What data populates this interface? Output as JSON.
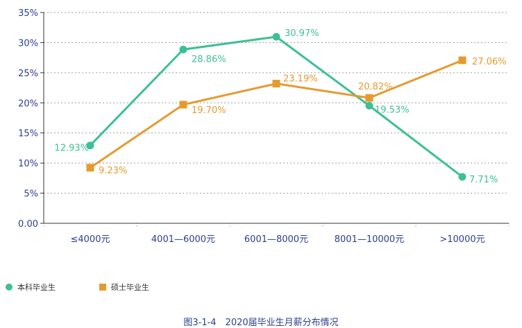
{
  "chart_data": {
    "type": "line",
    "categories": [
      "≤4000元",
      "4001—6000元",
      "6001—8000元",
      "8001—10000元",
      ">10000元"
    ],
    "y_ticks": [
      "0.00",
      "5%",
      "10%",
      "15%",
      "20%",
      "25%",
      "30%",
      "35%"
    ],
    "ylim": [
      0,
      35
    ],
    "grid": true,
    "legend_position": "bottom-left",
    "series": [
      {
        "name": "本科毕业生",
        "marker": "circle",
        "color": "#3dbf96",
        "values": [
          12.93,
          28.86,
          30.97,
          19.53,
          7.71
        ],
        "labels": [
          "12.93%",
          "28.86%",
          "30.97%",
          "19.53%",
          "7.71%"
        ]
      },
      {
        "name": "硕士毕业生",
        "marker": "square",
        "color": "#e69a2e",
        "values": [
          9.23,
          19.7,
          23.19,
          20.82,
          27.06
        ],
        "labels": [
          "9.23%",
          "19.70%",
          "23.19%",
          "20.82%",
          "27.06%"
        ]
      }
    ]
  },
  "caption": "图3-1-4　2020届毕业生月薪分布情况"
}
